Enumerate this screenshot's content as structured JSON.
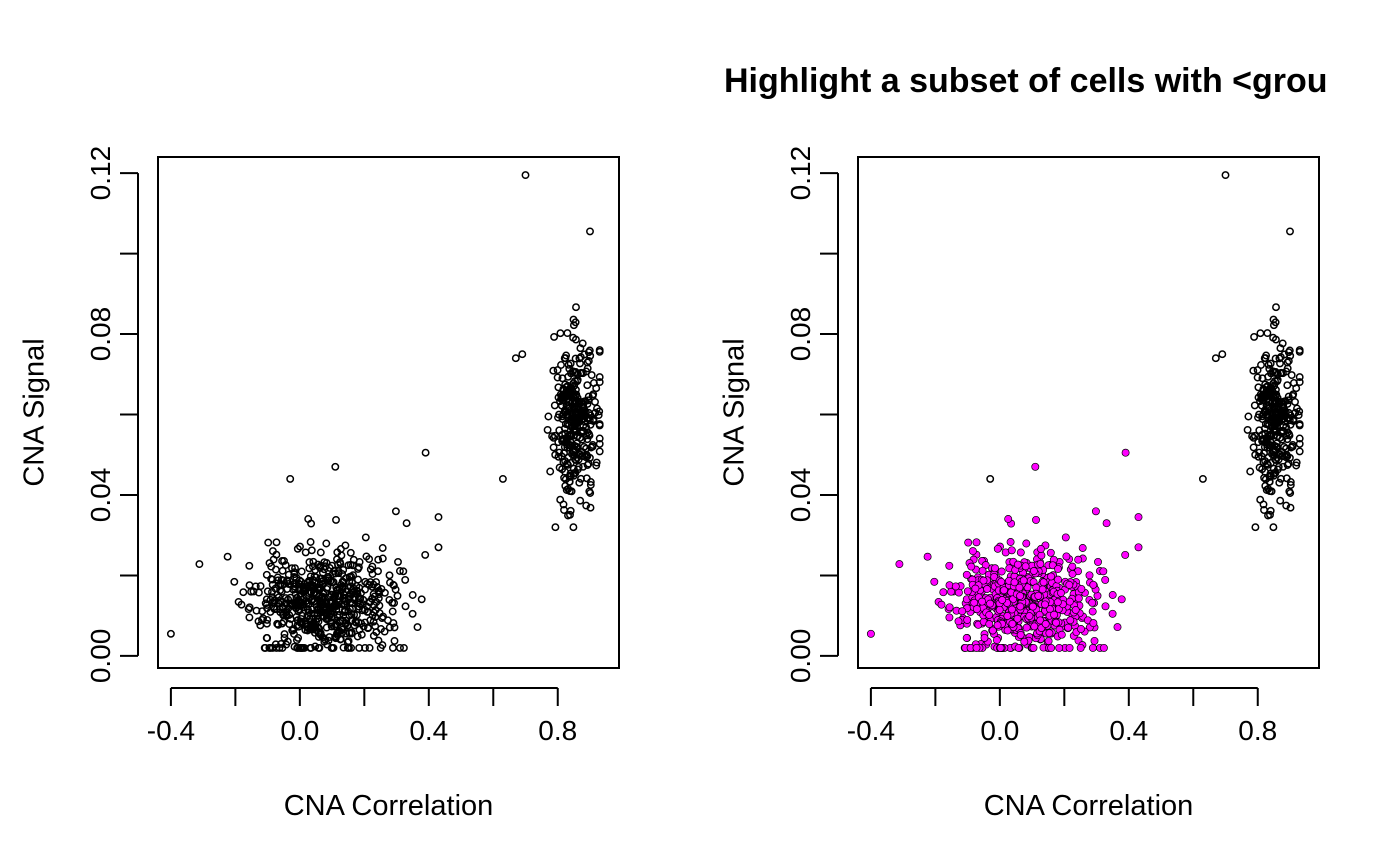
{
  "figure_title": "Highlight a subset of cells with <grou",
  "colors": {
    "axis": "#000000",
    "point_stroke": "#000000",
    "highlight": "#ff00ff",
    "background": "#ffffff"
  },
  "chart_data": [
    {
      "type": "scatter",
      "title": "",
      "xlabel": "CNA Correlation",
      "ylabel": "CNA Signal",
      "xlim": [
        -0.44,
        0.99
      ],
      "ylim": [
        -0.003,
        0.124
      ],
      "x_ticks": [
        -0.4,
        -0.2,
        0.0,
        0.2,
        0.4,
        0.6,
        0.8
      ],
      "x_tick_labels": [
        "-0.4",
        "",
        "0.0",
        "",
        "0.4",
        "",
        "0.8"
      ],
      "y_ticks": [
        0.0,
        0.02,
        0.04,
        0.06,
        0.08,
        0.1,
        0.12
      ],
      "y_tick_labels": [
        "0.00",
        "",
        "0.04",
        "",
        "0.08",
        "",
        "0.12"
      ],
      "grid": false,
      "highlight": false,
      "clusters": [
        {
          "name": "",
          "n": 620,
          "x_center": 0.07,
          "x_sd": 0.11,
          "y_center": 0.0135,
          "y_sd": 0.0065,
          "x_min": -0.4,
          "x_max": 0.44,
          "y_min": 0.002,
          "y_max": 0.047,
          "seed": 11
        },
        {
          "name": "",
          "n": 330,
          "x_center": 0.855,
          "x_sd": 0.035,
          "y_center": 0.059,
          "y_sd": 0.0095,
          "x_min": 0.63,
          "x_max": 0.93,
          "y_min": 0.032,
          "y_max": 0.09,
          "seed": 29
        }
      ],
      "points": [
        {
          "x": -0.4,
          "y": 0.0055
        },
        {
          "x": 0.39,
          "y": 0.0505
        },
        {
          "x": 0.43,
          "y": 0.0345
        },
        {
          "x": 0.43,
          "y": 0.027
        },
        {
          "x": -0.03,
          "y": 0.044
        },
        {
          "x": 0.11,
          "y": 0.047
        },
        {
          "x": 0.7,
          "y": 0.1195
        },
        {
          "x": 0.9,
          "y": 0.1055
        },
        {
          "x": 0.63,
          "y": 0.044
        },
        {
          "x": 0.67,
          "y": 0.074
        },
        {
          "x": 0.69,
          "y": 0.075
        },
        {
          "x": 0.93,
          "y": 0.076
        }
      ]
    },
    {
      "type": "scatter",
      "title": "",
      "xlabel": "CNA Correlation",
      "ylabel": "CNA Signal",
      "xlim": [
        -0.44,
        0.99
      ],
      "ylim": [
        -0.003,
        0.124
      ],
      "x_ticks": [
        -0.4,
        -0.2,
        0.0,
        0.2,
        0.4,
        0.6,
        0.8
      ],
      "x_tick_labels": [
        "-0.4",
        "",
        "0.0",
        "",
        "0.4",
        "",
        "0.8"
      ],
      "y_ticks": [
        0.0,
        0.02,
        0.04,
        0.06,
        0.08,
        0.1,
        0.12
      ],
      "y_tick_labels": [
        "0.00",
        "",
        "0.04",
        "",
        "0.08",
        "",
        "0.12"
      ],
      "grid": false,
      "highlight": true,
      "highlight_rule": "CNA Correlation < 0.5 (excluding x=-0.03, y=0.044)",
      "clusters": [
        {
          "name": "",
          "n": 620,
          "x_center": 0.07,
          "x_sd": 0.11,
          "y_center": 0.0135,
          "y_sd": 0.0065,
          "x_min": -0.4,
          "x_max": 0.44,
          "y_min": 0.002,
          "y_max": 0.047,
          "seed": 11
        },
        {
          "name": "",
          "n": 330,
          "x_center": 0.855,
          "x_sd": 0.035,
          "y_center": 0.059,
          "y_sd": 0.0095,
          "x_min": 0.63,
          "x_max": 0.93,
          "y_min": 0.032,
          "y_max": 0.09,
          "seed": 29
        }
      ],
      "points": [
        {
          "x": -0.4,
          "y": 0.0055
        },
        {
          "x": 0.39,
          "y": 0.0505
        },
        {
          "x": 0.43,
          "y": 0.0345
        },
        {
          "x": 0.43,
          "y": 0.027
        },
        {
          "x": -0.03,
          "y": 0.044
        },
        {
          "x": 0.11,
          "y": 0.047
        },
        {
          "x": 0.7,
          "y": 0.1195
        },
        {
          "x": 0.9,
          "y": 0.1055
        },
        {
          "x": 0.63,
          "y": 0.044
        },
        {
          "x": 0.67,
          "y": 0.074
        },
        {
          "x": 0.69,
          "y": 0.075
        },
        {
          "x": 0.93,
          "y": 0.076
        }
      ]
    }
  ]
}
